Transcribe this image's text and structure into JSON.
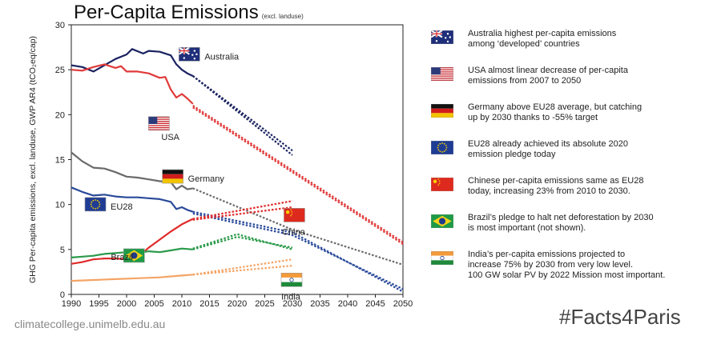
{
  "title": "Per-Capita Emissions",
  "subtitle": "(excl. landuse)",
  "footer": "climatecollege.unimelb.edu.au",
  "hashtag": "#Facts4Paris",
  "chart_data": {
    "type": "line",
    "title": "Per-Capita Emissions",
    "ylabel": "GHG Per-capita emissions, excl. landuse, GWP AR4 (tCO₂eq/cap)",
    "xlabel": "",
    "xlim": [
      1990,
      2050
    ],
    "ylim": [
      0,
      30
    ],
    "xticks": [
      1990,
      1995,
      2000,
      2005,
      2010,
      2015,
      2020,
      2025,
      2030,
      2035,
      2040,
      2045,
      2050
    ],
    "yticks": [
      0,
      5,
      10,
      15,
      20,
      25,
      30
    ],
    "series": [
      {
        "name": "Australia",
        "color": "#1a2260",
        "label_x": 2011.5,
        "label_y": 26.5,
        "flag": "au",
        "history": [
          [
            1990,
            25.5
          ],
          [
            1992,
            25.3
          ],
          [
            1994,
            24.8
          ],
          [
            1996,
            25.5
          ],
          [
            1998,
            26.2
          ],
          [
            2000,
            26.7
          ],
          [
            2001,
            27.3
          ],
          [
            2003,
            26.8
          ],
          [
            2004,
            27.1
          ],
          [
            2006,
            27.0
          ],
          [
            2008,
            26.6
          ],
          [
            2009,
            25.6
          ],
          [
            2010,
            25.0
          ],
          [
            2011,
            24.6
          ],
          [
            2012,
            24.3
          ]
        ],
        "projections": [
          [
            [
              2012,
              24.3
            ],
            [
              2030,
              15.5
            ]
          ],
          [
            [
              2012,
              24.3
            ],
            [
              2030,
              16.0
            ]
          ]
        ]
      },
      {
        "name": "USA",
        "color": "#e03a3a",
        "label_x": 2006,
        "label_y": 18.8,
        "flag": "us",
        "history": [
          [
            1990,
            25.0
          ],
          [
            1992,
            24.9
          ],
          [
            1994,
            25.3
          ],
          [
            1996,
            25.6
          ],
          [
            1998,
            25.2
          ],
          [
            1999,
            25.4
          ],
          [
            2000,
            24.8
          ],
          [
            2002,
            24.8
          ],
          [
            2004,
            24.6
          ],
          [
            2006,
            24.1
          ],
          [
            2007,
            24.2
          ],
          [
            2008,
            22.8
          ],
          [
            2009,
            21.9
          ],
          [
            2010,
            22.3
          ],
          [
            2011,
            21.8
          ],
          [
            2012,
            21.2
          ]
        ],
        "projections": [
          [
            [
              2012,
              21.0
            ],
            [
              2050,
              5.8
            ]
          ],
          [
            [
              2012,
              20.8
            ],
            [
              2050,
              5.6
            ]
          ]
        ]
      },
      {
        "name": "Germany",
        "color": "#6a6a6a",
        "label_x": 2008.5,
        "label_y": 12.9,
        "flag": "de",
        "history": [
          [
            1990,
            15.8
          ],
          [
            1992,
            14.8
          ],
          [
            1994,
            14.1
          ],
          [
            1996,
            14.0
          ],
          [
            1998,
            13.6
          ],
          [
            2000,
            13.1
          ],
          [
            2002,
            13.0
          ],
          [
            2004,
            12.8
          ],
          [
            2006,
            12.6
          ],
          [
            2008,
            12.5
          ],
          [
            2009,
            11.7
          ],
          [
            2010,
            12.1
          ],
          [
            2011,
            11.7
          ],
          [
            2012,
            11.8
          ]
        ],
        "projections": [
          [
            [
              2012,
              11.8
            ],
            [
              2030,
              7.2
            ],
            [
              2050,
              3.3
            ]
          ]
        ]
      },
      {
        "name": "EU28",
        "color": "#2a4a9a",
        "label_x": 1994.5,
        "label_y": 9.8,
        "flag": "eu",
        "history": [
          [
            1990,
            11.9
          ],
          [
            1992,
            11.4
          ],
          [
            1994,
            11.0
          ],
          [
            1996,
            11.1
          ],
          [
            1998,
            10.9
          ],
          [
            2000,
            10.8
          ],
          [
            2002,
            10.8
          ],
          [
            2004,
            10.7
          ],
          [
            2006,
            10.6
          ],
          [
            2008,
            10.3
          ],
          [
            2009,
            9.5
          ],
          [
            2010,
            9.7
          ],
          [
            2011,
            9.4
          ],
          [
            2012,
            9.2
          ]
        ],
        "projections": [
          [
            [
              2012,
              9.2
            ],
            [
              2030,
              6.9
            ],
            [
              2050,
              0.3
            ]
          ],
          [
            [
              2012,
              9.0
            ],
            [
              2030,
              6.6
            ],
            [
              2050,
              0.6
            ]
          ]
        ]
      },
      {
        "name": "China",
        "color": "#e02a2a",
        "label_x": 2030.5,
        "label_y": 8.6,
        "flag": "cn",
        "history": [
          [
            1990,
            3.4
          ],
          [
            1992,
            3.6
          ],
          [
            1994,
            3.9
          ],
          [
            1996,
            4.0
          ],
          [
            1998,
            4.0
          ],
          [
            2000,
            3.9
          ],
          [
            2002,
            4.1
          ],
          [
            2004,
            5.2
          ],
          [
            2006,
            6.1
          ],
          [
            2008,
            7.0
          ],
          [
            2010,
            7.8
          ],
          [
            2012,
            8.4
          ]
        ],
        "projections": [
          [
            [
              2012,
              8.4
            ],
            [
              2030,
              10.4
            ]
          ],
          [
            [
              2012,
              8.3
            ],
            [
              2030,
              9.7
            ]
          ]
        ]
      },
      {
        "name": "Brazil",
        "color": "#2a9a4a",
        "label_x": 2001.5,
        "label_y": 4.1,
        "flag": "br",
        "history": [
          [
            1990,
            4.1
          ],
          [
            1992,
            4.2
          ],
          [
            1994,
            4.3
          ],
          [
            1996,
            4.5
          ],
          [
            1998,
            4.6
          ],
          [
            2000,
            4.7
          ],
          [
            2002,
            4.6
          ],
          [
            2004,
            4.8
          ],
          [
            2006,
            4.7
          ],
          [
            2008,
            4.9
          ],
          [
            2010,
            5.1
          ],
          [
            2012,
            5.0
          ]
        ],
        "projections": [
          [
            [
              2012,
              5.1
            ],
            [
              2020,
              6.7
            ],
            [
              2030,
              5.0
            ]
          ],
          [
            [
              2012,
              5.0
            ],
            [
              2020,
              6.4
            ],
            [
              2030,
              5.2
            ]
          ]
        ]
      },
      {
        "name": "India",
        "color": "#f4a466",
        "label_x": 2030,
        "label_y": 1.4,
        "flag": "in",
        "history": [
          [
            1990,
            1.5
          ],
          [
            1994,
            1.6
          ],
          [
            1998,
            1.7
          ],
          [
            2002,
            1.8
          ],
          [
            2006,
            1.9
          ],
          [
            2010,
            2.1
          ],
          [
            2012,
            2.2
          ]
        ],
        "projections": [
          [
            [
              2012,
              2.2
            ],
            [
              2030,
              3.9
            ]
          ],
          [
            [
              2012,
              2.2
            ],
            [
              2030,
              3.2
            ]
          ]
        ]
      }
    ]
  },
  "legend": [
    {
      "flag": "au",
      "text": "Australia highest per-capita emissions\namong ‘developed’ countries"
    },
    {
      "flag": "us",
      "text": "USA almost linear decrease of per-capita\nemissions from 2007 to 2050"
    },
    {
      "flag": "de",
      "text": "Germany above EU28 average, but catching\nup by 2030 thanks to -55% target"
    },
    {
      "flag": "eu",
      "text": "EU28 already achieved its absolute 2020\nemission pledge today"
    },
    {
      "flag": "cn",
      "text": "Chinese per-capita emissions same as EU28\ntoday, increasing 23% from 2010 to 2030."
    },
    {
      "flag": "br",
      "text": "Brazil’s pledge to halt net deforestation by 2030\nis most important (not shown)."
    },
    {
      "flag": "in",
      "text": "India’s per-capita emissions projected to\nincrease 75% by 2030 from very low level.\n100 GW solar PV by 2022 Mission most important."
    }
  ]
}
